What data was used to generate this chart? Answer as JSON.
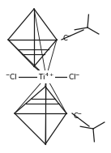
{
  "bg_color": "#ffffff",
  "line_color": "#1a1a1a",
  "text_color": "#000000",
  "lw": 0.9,
  "lw_thin": 0.65,
  "figsize": [
    1.37,
    1.89
  ],
  "dpi": 100,
  "ti_label": "Ti$^{4+}$",
  "cl_left_label": "$^{-}$Cl",
  "cl_right_label": "Cl$^{-}$",
  "c_top_label": "C$^{-}$",
  "c_bot_label": "C$^{-}$"
}
